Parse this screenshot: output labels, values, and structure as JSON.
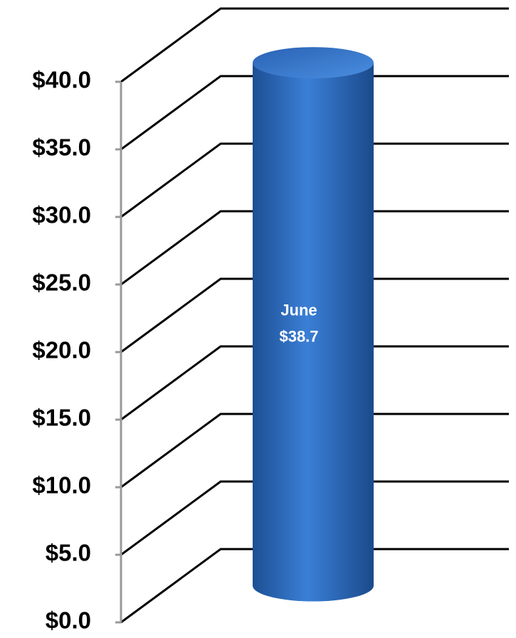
{
  "chart_data": {
    "type": "bar3d-cylinder",
    "categories": [
      "June"
    ],
    "values": [
      38.7
    ],
    "value_labels": [
      "$38.7"
    ],
    "color": "#2e6bc0",
    "ylim": [
      0,
      40
    ],
    "yticks": [
      {
        "value": 0,
        "label": "$0.0"
      },
      {
        "value": 5,
        "label": "$5.0"
      },
      {
        "value": 10,
        "label": "$10.0"
      },
      {
        "value": 15,
        "label": "$15.0"
      },
      {
        "value": 20,
        "label": "$20.0"
      },
      {
        "value": 25,
        "label": "$25.0"
      },
      {
        "value": 30,
        "label": "$30.0"
      },
      {
        "value": 35,
        "label": "$35.0"
      },
      {
        "value": 40,
        "label": "$40.0"
      }
    ],
    "grid": true
  }
}
